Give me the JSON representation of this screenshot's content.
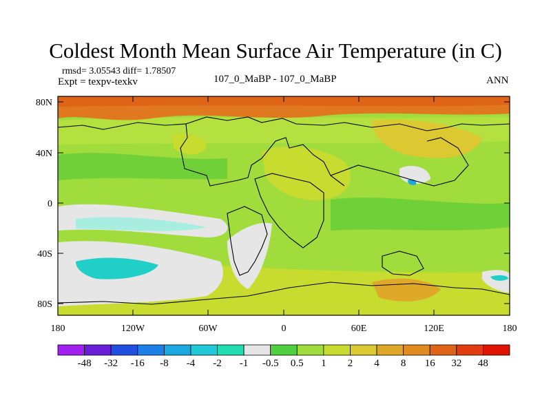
{
  "header": {
    "title": "Coldest Month Mean Surface Air Temperature (in C)",
    "stats": "rmsd= 3.05543 diff= 1.78507",
    "experiment": "Expt = texpv-texkv",
    "comparison": "107_0_MaBP - 107_0_MaBP",
    "season": "ANN"
  },
  "map": {
    "lat_labels": [
      "80N",
      "40N",
      "0",
      "40S",
      "80S"
    ],
    "lon_labels": [
      "180",
      "120W",
      "60W",
      "0",
      "60E",
      "120E",
      "180"
    ],
    "colors": {
      "background_green": "#9fdc3c",
      "arctic": "#e07820",
      "land_outline": "#000000",
      "near_zero": "#e6e6e6",
      "cold_pool": "#20d0c8"
    }
  },
  "colorbar": {
    "colors": [
      "#a020f0",
      "#6a1cd8",
      "#2050e0",
      "#1c80e8",
      "#1ca8e0",
      "#20c8d8",
      "#20dcb0",
      "#e6e6e6",
      "#50d040",
      "#9fdc3c",
      "#c8dc30",
      "#dcc830",
      "#e0a828",
      "#e08c20",
      "#e06418",
      "#e03c10",
      "#e01400"
    ],
    "labels": [
      "-48",
      "-32",
      "-16",
      "-8",
      "-4",
      "-2",
      "-1",
      "-0.5",
      "0.5",
      "1",
      "2",
      "4",
      "8",
      "16",
      "32",
      "48"
    ]
  }
}
